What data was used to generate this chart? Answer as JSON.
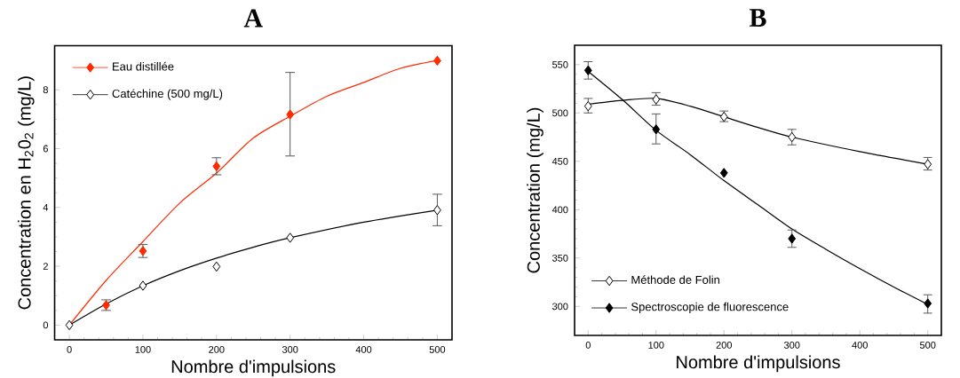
{
  "chart_data": [
    {
      "type": "scatter",
      "title": "A",
      "xlabel": "Nombre d'impulsions",
      "ylabel": "Concentration en H$_{2}$0$_{2}$ (mg/L)",
      "xlim": [
        -20,
        520
      ],
      "ylim": [
        -0.5,
        9.5
      ],
      "xticks": [
        0,
        100,
        200,
        300,
        400,
        500
      ],
      "yticks": [
        0,
        2,
        4,
        6,
        8
      ],
      "legend": "top left",
      "series": [
        {
          "name": "Eau distillée",
          "color": "#ff2a00",
          "marker": "diamond",
          "x": [
            50,
            100,
            200,
            300,
            500
          ],
          "values": [
            0.68,
            2.52,
            5.4,
            7.16,
            8.99
          ],
          "errors": [
            [
              0.5,
              0.86
            ],
            [
              2.3,
              2.74
            ],
            [
              5.11,
              5.69
            ],
            [
              5.75,
              8.59
            ],
            null
          ]
        },
        {
          "name": "Catéchine (500 mg/L)",
          "color": "#000000",
          "marker": "diamond",
          "x": [
            0,
            100,
            200,
            300,
            500
          ],
          "values": [
            0,
            1.34,
            1.99,
            2.97,
            3.91
          ],
          "errors": [
            null,
            null,
            null,
            null,
            [
              3.38,
              4.45
            ]
          ]
        },
        {
          "type": "line",
          "color": "#ff2a00",
          "x": [
            0,
            50,
            100,
            150,
            200,
            250,
            300,
            350,
            400,
            450,
            500
          ],
          "values": [
            0,
            1.52,
            2.84,
            4.15,
            5.17,
            6.36,
            7.1,
            7.78,
            8.25,
            8.73,
            9.0
          ]
        },
        {
          "type": "line",
          "color": "#000000",
          "x": [
            0,
            50,
            100,
            150,
            200,
            250,
            300,
            400,
            500
          ],
          "values": [
            0,
            0.72,
            1.34,
            1.85,
            2.28,
            2.65,
            2.97,
            3.5,
            3.91
          ]
        }
      ]
    },
    {
      "type": "scatter",
      "title": "B",
      "xlabel": "Nombre d'impulsions",
      "ylabel": "Concentration (mg/L)",
      "xlim": [
        -20,
        520
      ],
      "ylim": [
        270,
        570
      ],
      "xticks": [
        0,
        100,
        200,
        300,
        400,
        500
      ],
      "yticks": [
        300,
        350,
        400,
        450,
        500,
        550
      ],
      "legend": "bottom left",
      "series": [
        {
          "name": "Méthode de Folin",
          "color": "#000000",
          "marker": "diamond",
          "x": [
            0,
            100,
            200,
            300,
            500
          ],
          "values": [
            507,
            514,
            496,
            475,
            447
          ],
          "errors": [
            [
              500,
              515
            ],
            [
              508,
              521
            ],
            [
              491,
              502
            ],
            [
              467,
              483
            ],
            [
              441,
              454
            ]
          ]
        },
        {
          "name": "Spectroscopie de fluorescence",
          "color": "#000000",
          "marker": "diamond",
          "x": [
            0,
            100,
            200,
            300,
            500
          ],
          "values": [
            544,
            483,
            438,
            370,
            303
          ],
          "errors": [
            [
              535,
              553
            ],
            [
              468,
              499
            ],
            null,
            [
              361,
              379
            ],
            [
              293,
              312
            ]
          ]
        },
        {
          "type": "line",
          "color": "#000000",
          "x": [
            0,
            50,
            100,
            150,
            200,
            250,
            300,
            400,
            500
          ],
          "values": [
            509,
            513,
            515,
            507,
            496,
            485,
            475,
            460,
            447
          ]
        },
        {
          "type": "line",
          "color": "#000000",
          "x": [
            0,
            50,
            100,
            150,
            200,
            250,
            300,
            350,
            400,
            450,
            500
          ],
          "values": [
            543,
            514,
            482,
            457,
            430,
            405,
            380,
            359,
            339,
            320,
            302
          ]
        }
      ]
    }
  ]
}
